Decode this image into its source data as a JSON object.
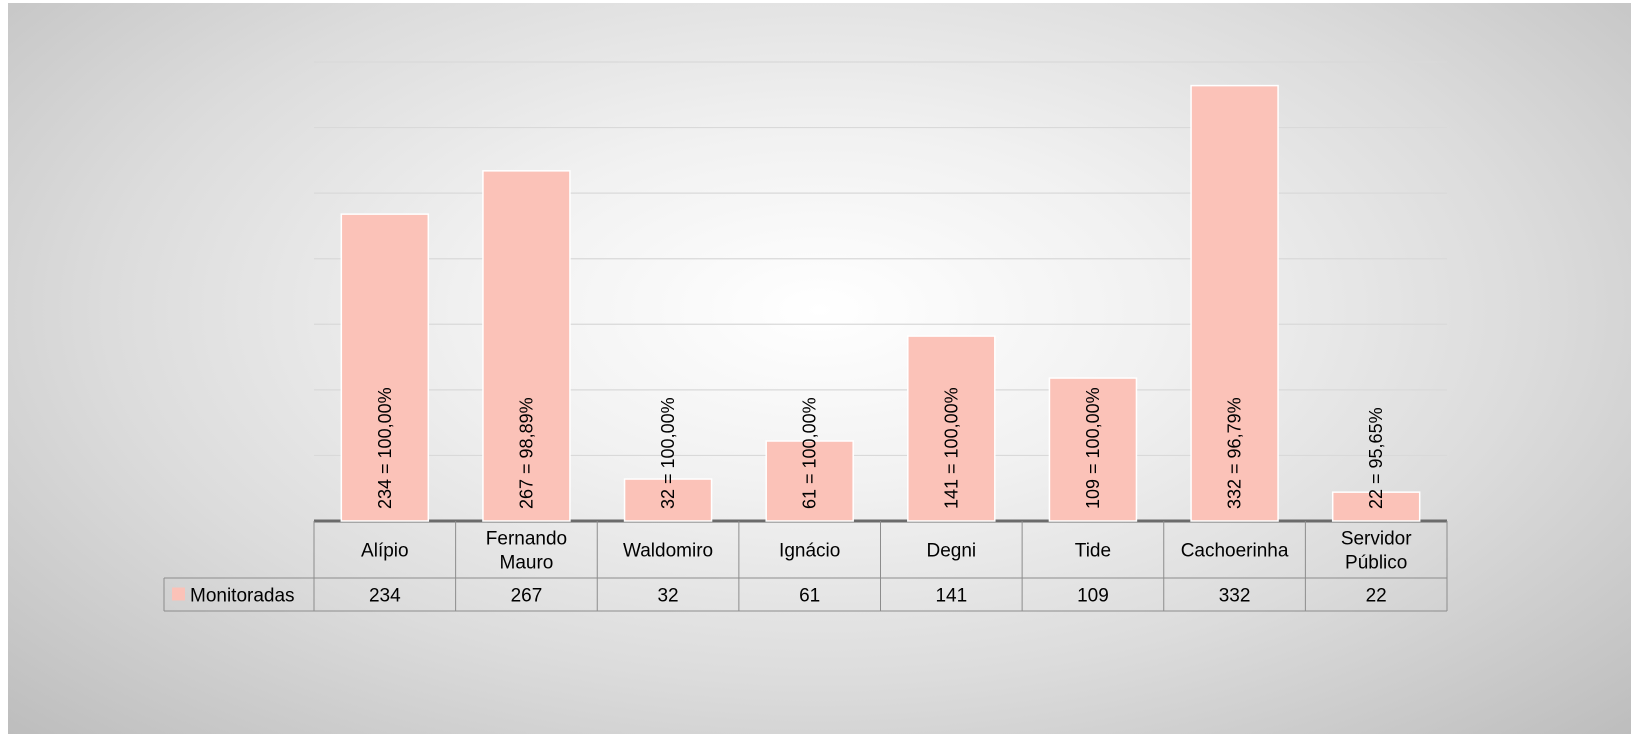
{
  "chart_data": {
    "type": "bar",
    "categories": [
      [
        "Alípio"
      ],
      [
        "Fernando",
        "Mauro"
      ],
      [
        "Waldomiro"
      ],
      [
        "Ignácio"
      ],
      [
        "Degni"
      ],
      [
        "Tide"
      ],
      [
        "Cachoerinha"
      ],
      [
        "Servidor",
        "Público"
      ]
    ],
    "series": [
      {
        "name": "Monitoradas",
        "values": [
          234,
          267,
          32,
          61,
          141,
          109,
          332,
          22
        ],
        "value_labels": [
          "234",
          "267",
          "32",
          "61",
          "141",
          "109",
          "332",
          "22"
        ],
        "data_labels": [
          "234 = 100,00%",
          "267 = 98,89%",
          "32 = 100,00%",
          "61 = 100,00%",
          "141 = 100,00%",
          "109 = 100,00%",
          "332 = 96,79%",
          "22 = 95,65%"
        ]
      }
    ],
    "ylim": [
      0,
      350
    ],
    "grid": true,
    "data_table": true,
    "legend": "in-table",
    "bar_color": "#fbc2b8",
    "title": "",
    "xlabel": "",
    "ylabel": ""
  }
}
